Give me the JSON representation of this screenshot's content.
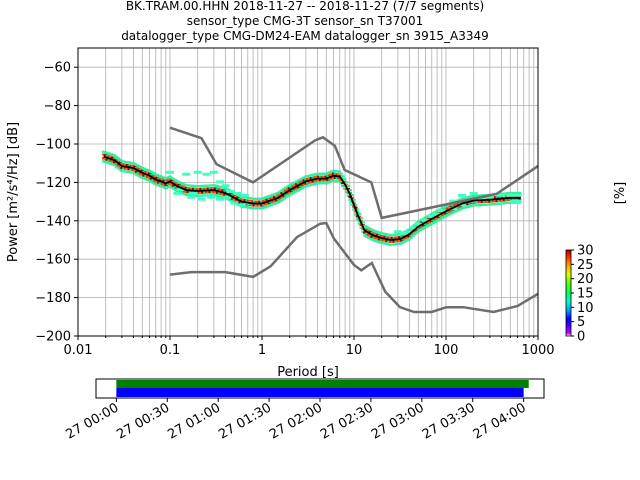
{
  "chart_data": {
    "type": "heatmap",
    "title_lines": [
      "BK.TRAM.00.HHN   2018-11-27 -- 2018-11-27  (7/7 segments)",
      "sensor_type CMG-3T sensor_sn T37001",
      "datalogger_type CMG-DM24-EAM datalogger_sn 3915_A3349"
    ],
    "xlabel": "Period [s]",
    "ylabel": "Power [m²/s⁴/Hz] [dB]",
    "x_scale": "log",
    "xlim": [
      0.01,
      1000
    ],
    "ylim": [
      -200,
      -50
    ],
    "x_ticks": [
      {
        "v": 0.01,
        "label": "0.01"
      },
      {
        "v": 0.1,
        "label": "0.1"
      },
      {
        "v": 1,
        "label": "1"
      },
      {
        "v": 10,
        "label": "10"
      },
      {
        "v": 100,
        "label": "100"
      },
      {
        "v": 1000,
        "label": "1000"
      }
    ],
    "y_ticks": [
      {
        "v": -60,
        "label": "−60"
      },
      {
        "v": -80,
        "label": "−80"
      },
      {
        "v": -100,
        "label": "−100"
      },
      {
        "v": -120,
        "label": "−120"
      },
      {
        "v": -140,
        "label": "−140"
      },
      {
        "v": -160,
        "label": "−160"
      },
      {
        "v": -180,
        "label": "−180"
      },
      {
        "v": -200,
        "label": "−200"
      }
    ],
    "grid": true,
    "high_noise_model": [
      [
        0.1,
        -91.5
      ],
      [
        0.22,
        -97
      ],
      [
        0.32,
        -110.5
      ],
      [
        0.8,
        -120
      ],
      [
        3.8,
        -98
      ],
      [
        4.6,
        -96.5
      ],
      [
        6.2,
        -101
      ],
      [
        7.9,
        -113.5
      ],
      [
        15.4,
        -120
      ],
      [
        20,
        -138.5
      ],
      [
        354,
        -126
      ],
      [
        1000,
        -111.5
      ]
    ],
    "low_noise_model": [
      [
        0.1,
        -168
      ],
      [
        0.17,
        -166.7
      ],
      [
        0.4,
        -166.7
      ],
      [
        0.8,
        -169.2
      ],
      [
        1.24,
        -163.7
      ],
      [
        2.4,
        -148.5
      ],
      [
        4.3,
        -141.5
      ],
      [
        5,
        -141.2
      ],
      [
        6,
        -149
      ],
      [
        10,
        -163
      ],
      [
        12,
        -165.8
      ],
      [
        15.6,
        -162
      ],
      [
        21.9,
        -177
      ],
      [
        31.6,
        -185
      ],
      [
        45,
        -187.5
      ],
      [
        70,
        -187.5
      ],
      [
        101,
        -185
      ],
      [
        154,
        -185
      ],
      [
        328,
        -187.5
      ],
      [
        600,
        -184.4
      ],
      [
        1000,
        -178
      ]
    ],
    "mean_psd": [
      [
        0.019,
        -106.5
      ],
      [
        0.025,
        -108.5
      ],
      [
        0.03,
        -111.5
      ],
      [
        0.04,
        -112.5
      ],
      [
        0.05,
        -115
      ],
      [
        0.06,
        -116.5
      ],
      [
        0.07,
        -118.5
      ],
      [
        0.08,
        -119.5
      ],
      [
        0.09,
        -120.5
      ],
      [
        0.1,
        -119.5
      ],
      [
        0.12,
        -122
      ],
      [
        0.15,
        -124
      ],
      [
        0.2,
        -124.5
      ],
      [
        0.3,
        -124
      ],
      [
        0.4,
        -125.5
      ],
      [
        0.5,
        -128
      ],
      [
        0.6,
        -130
      ],
      [
        0.8,
        -131
      ],
      [
        1,
        -131
      ],
      [
        1.5,
        -128
      ],
      [
        2,
        -124
      ],
      [
        3,
        -119.5
      ],
      [
        4,
        -118
      ],
      [
        5,
        -118
      ],
      [
        6,
        -116.5
      ],
      [
        7,
        -117
      ],
      [
        8,
        -121
      ],
      [
        9,
        -126
      ],
      [
        11,
        -137
      ],
      [
        13,
        -145
      ],
      [
        16,
        -147.5
      ],
      [
        20,
        -149
      ],
      [
        25,
        -150
      ],
      [
        32,
        -149.5
      ],
      [
        40,
        -147
      ],
      [
        50,
        -143
      ],
      [
        70,
        -139
      ],
      [
        100,
        -135
      ],
      [
        150,
        -131
      ],
      [
        200,
        -129.5
      ],
      [
        300,
        -129
      ],
      [
        400,
        -128.5
      ],
      [
        500,
        -128
      ],
      [
        650,
        -128
      ]
    ],
    "spread_cells": [
      [
        0.1,
        -115
      ],
      [
        0.15,
        -116
      ],
      [
        0.2,
        -115
      ],
      [
        0.25,
        -116
      ],
      [
        0.3,
        -115
      ],
      [
        0.35,
        -120
      ],
      [
        0.12,
        -126
      ],
      [
        0.17,
        -128
      ],
      [
        0.22,
        -129
      ],
      [
        0.28,
        -128
      ],
      [
        0.35,
        -129
      ],
      [
        0.42,
        -128
      ],
      [
        0.5,
        -131
      ],
      [
        0.6,
        -132
      ],
      [
        0.7,
        -131
      ],
      [
        0.4,
        -122
      ],
      [
        0.45,
        -125
      ],
      [
        0.55,
        -126
      ],
      [
        0.65,
        -127
      ],
      [
        0.13,
        -124
      ],
      [
        0.18,
        -126
      ],
      [
        0.25,
        -127
      ],
      [
        30,
        -146
      ],
      [
        35,
        -147
      ],
      [
        40,
        -146
      ],
      [
        45,
        -144
      ],
      [
        50,
        -142
      ],
      [
        60,
        -140
      ],
      [
        70,
        -138
      ],
      [
        80,
        -137
      ],
      [
        90,
        -135
      ],
      [
        120,
        -134
      ],
      [
        150,
        -132
      ],
      [
        200,
        -130
      ],
      [
        250,
        -129
      ],
      [
        300,
        -128
      ],
      [
        400,
        -127
      ],
      [
        500,
        -127
      ],
      [
        600,
        -127
      ],
      [
        150,
        -127
      ],
      [
        200,
        -126
      ],
      [
        120,
        -130
      ],
      [
        550,
        -130
      ],
      [
        600,
        -130
      ]
    ],
    "colorbar": {
      "label": "[%]",
      "range": [
        0,
        30
      ],
      "ticks": [
        {
          "v": 0,
          "label": "0"
        },
        {
          "v": 5,
          "label": "5"
        },
        {
          "v": 10,
          "label": "10"
        },
        {
          "v": 15,
          "label": "15"
        },
        {
          "v": 20,
          "label": "20"
        },
        {
          "v": 25,
          "label": "25"
        },
        {
          "v": 30,
          "label": "30"
        }
      ]
    },
    "timeline": {
      "ticks": [
        {
          "h": 0,
          "label": "27 00:00"
        },
        {
          "h": 0.5,
          "label": "27 00:30"
        },
        {
          "h": 1,
          "label": "27 01:00"
        },
        {
          "h": 1.5,
          "label": "27 01:30"
        },
        {
          "h": 2,
          "label": "27 02:00"
        },
        {
          "h": 2.5,
          "label": "27 02:30"
        },
        {
          "h": 3,
          "label": "27 03:00"
        },
        {
          "h": 3.5,
          "label": "27 03:30"
        },
        {
          "h": 4,
          "label": "27 04:00"
        }
      ],
      "range_hours": [
        -0.2,
        4.2
      ],
      "data_bar": {
        "start": 0,
        "end": 4.05,
        "color": "#008000"
      },
      "psd_bar": {
        "start": 0,
        "end": 4.0,
        "color": "#0000ff"
      }
    }
  }
}
